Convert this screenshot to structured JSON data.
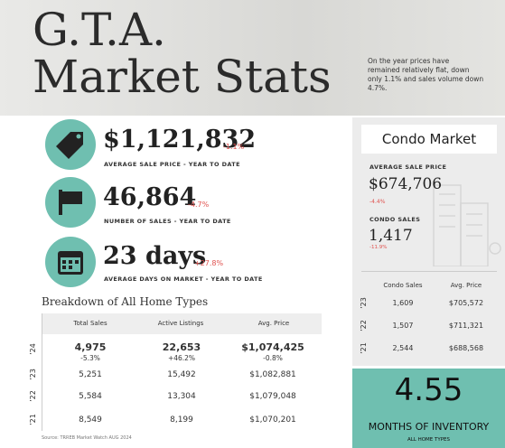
{
  "header": {
    "title_line1": "G.T.A.",
    "title_line2": "Market Stats",
    "note": [
      "On the year prices have",
      "remained relatively flat, down",
      "only 1.1% and sales volume down",
      "4.7%."
    ]
  },
  "stats": [
    {
      "value": "$1,121,832",
      "change": "-1.1%",
      "label": "AVERAGE SALE PRICE - YEAR TO DATE"
    },
    {
      "value": "46,864",
      "change": "-4.7%",
      "label": "NUMBER OF SALES - YEAR TO DATE"
    },
    {
      "value": "23 days",
      "change": "+27.8%",
      "label": "AVERAGE DAYS ON MARKET - YEAR TO DATE"
    }
  ],
  "breakdown": {
    "title": "Breakdown of All Home Types",
    "columns": [
      "Total Sales",
      "Active Listings",
      "Avg. Price"
    ],
    "rows": [
      {
        "year": "’24",
        "values": [
          "4,975",
          "22,653",
          "$1,074,425"
        ],
        "changes": [
          "-5.3%",
          "+46.2%",
          "-0.8%"
        ]
      },
      {
        "year": "’23",
        "values": [
          "5,251",
          "15,492",
          "$1,082,881"
        ]
      },
      {
        "year": "’22",
        "values": [
          "5,584",
          "13,304",
          "$1,079,048"
        ]
      },
      {
        "year": "’21",
        "values": [
          "8,549",
          "8,199",
          "$1,070,201"
        ]
      }
    ],
    "source": "Source: TRREB Market Watch AUG 2024"
  },
  "condo": {
    "title": "Condo Market",
    "avg_label": "AVERAGE SALE PRICE",
    "avg_value": "$674,706",
    "avg_change": "-4.4%",
    "sales_label": "CONDO SALES",
    "sales_value": "1,417",
    "sales_change": "-11.9%",
    "columns": [
      "Condo Sales",
      "Avg. Price"
    ],
    "rows": [
      {
        "year": "’23",
        "values": [
          "1,609",
          "$705,572"
        ]
      },
      {
        "year": "’22",
        "values": [
          "1,507",
          "$711,321"
        ]
      },
      {
        "year": "’21",
        "values": [
          "2,544",
          "$688,568"
        ]
      }
    ]
  },
  "inventory": {
    "value": "4.55",
    "label": "MONTHS OF INVENTORY",
    "sublabel": "ALL HOME TYPES"
  }
}
